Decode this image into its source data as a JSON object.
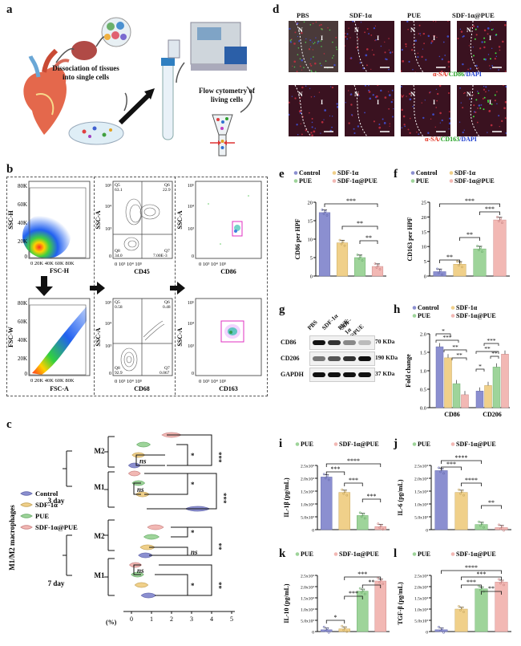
{
  "panels": {
    "a": "a",
    "b": "b",
    "c": "c",
    "d": "d",
    "e": "e",
    "f": "f",
    "g": "g",
    "h": "h",
    "i": "i",
    "j": "j",
    "k": "k",
    "l": "l"
  },
  "panel_a": {
    "step1": "Dissociation of tissues into single cells",
    "step2": "Flow cytometry of living cells"
  },
  "panel_b": {
    "ssc_h": "SSC-H",
    "fsc_h": "FSC-H",
    "fsc_w": "FSC-W",
    "fsc_a": "FSC-A",
    "ssc_a": "SSC-A",
    "cd45": "CD45",
    "cd68": "CD68",
    "cd86": "CD86",
    "cd163": "CD163",
    "yticks_top": [
      "80K",
      "60K",
      "40K",
      "20K",
      "0"
    ],
    "xticks_top": "0 20K 40K 60K 80K",
    "yticks_bot": [
      "80K",
      "60K",
      "40K",
      "20K",
      "0"
    ],
    "xticks_bot": "0 20K 40K 60K 80K",
    "q_top": {
      "q5": "Q5\n63.1",
      "q6": "Q6\n22.9",
      "q8": "Q8\n34.0",
      "q7": "Q7\n7.00E-3"
    },
    "q_bot": {
      "q5": "Q5\n0.58",
      "q6": "Q6\n0.48",
      "q8": "Q8\n92.9",
      "q7": "Q7\n0.067"
    },
    "log_ticks": [
      "10⁵",
      "10⁴",
      "10³",
      "0"
    ],
    "log_x": "0  10³  10⁴  10⁵"
  },
  "panel_c": {
    "ylabel": "M1/M2 macrophages",
    "day3": "3 day",
    "day7": "7 day",
    "m1": "M1",
    "m2": "M2",
    "legend": [
      "Control",
      "SDF-1α",
      "PUE",
      "SDF-1α@PUE"
    ],
    "xaxis_unit": "(%)",
    "xticks": [
      "0",
      "1",
      "2",
      "3",
      "4",
      "5"
    ],
    "sig": [
      "***",
      "*",
      "ns",
      "***",
      "*",
      "ns",
      "**",
      "*",
      "ns",
      "**",
      "*",
      "ns"
    ]
  },
  "panel_d": {
    "headers": [
      "PBS",
      "SDF-1α",
      "PUE",
      "SDF-1α@PUE"
    ],
    "stain1": {
      "a": "α-SA/",
      "b": "CD86",
      "c": "/DAPI"
    },
    "stain2": {
      "a": "α-SA/",
      "b": "CD163",
      "c": "/DAPI"
    },
    "n": "N",
    "i": "I"
  },
  "legend": {
    "control": "Control",
    "sdf": "SDF-1α",
    "pue": "PUE",
    "combo": "SDF-1α@PUE"
  },
  "colors": {
    "control": "#8b8fd0",
    "sdf": "#f0d08a",
    "pue": "#9ed49a",
    "combo": "#f2b8b4"
  },
  "panel_g": {
    "lanes": [
      "PBS",
      "SDF-1α",
      "PUE",
      "SDF-1α @PUE"
    ],
    "rows": [
      {
        "name": "CD86",
        "kda": "70 KDa"
      },
      {
        "name": "CD206",
        "kda": "190 KDa"
      },
      {
        "name": "GAPDH",
        "kda": "37 KDa"
      }
    ]
  },
  "chart_data": [
    {
      "id": "e",
      "type": "bar",
      "categories": [
        "Control",
        "SDF-1α",
        "PUE",
        "SDF-1α@PUE"
      ],
      "values": [
        17.2,
        9.0,
        5.0,
        2.6
      ],
      "ylabel": "CD86 per HPF",
      "ylim": [
        0,
        20
      ],
      "yticks": [
        "0",
        "5",
        "10",
        "15",
        "20"
      ],
      "sig": [
        "***",
        "**",
        "**"
      ]
    },
    {
      "id": "f",
      "type": "bar",
      "categories": [
        "Control",
        "SDF-1α",
        "PUE",
        "SDF-1α@PUE"
      ],
      "values": [
        1.5,
        4.0,
        9.2,
        19.0
      ],
      "ylabel": "CD163 per HPF",
      "ylim": [
        0,
        25
      ],
      "yticks": [
        "0",
        "5",
        "10",
        "15",
        "20",
        "25"
      ],
      "sig": [
        "***",
        "***",
        "**",
        "**"
      ]
    },
    {
      "id": "h",
      "type": "bar",
      "groups": [
        "CD86",
        "CD206"
      ],
      "series": [
        {
          "name": "Control",
          "values": [
            1.65,
            0.45
          ]
        },
        {
          "name": "SDF-1α",
          "values": [
            1.35,
            0.6
          ]
        },
        {
          "name": "PUE",
          "values": [
            0.65,
            1.1
          ]
        },
        {
          "name": "SDF-1α@PUE",
          "values": [
            0.35,
            1.45
          ]
        }
      ],
      "ylabel": "Fold change",
      "ylim": [
        0,
        2.0
      ],
      "yticks": [
        "0.0",
        "0.5",
        "1.0",
        "1.5",
        "2.0"
      ],
      "sig": [
        "*",
        "***",
        "**",
        "**",
        "*",
        "**",
        "***",
        "**"
      ]
    },
    {
      "id": "i",
      "type": "bar",
      "categories": [
        "Control",
        "SDF-1α",
        "PUE",
        "SDF-1α@PUE"
      ],
      "values": [
        2.05,
        1.45,
        0.55,
        0.12
      ],
      "ylabel": "IL-1β (pg/mL)",
      "ylim": [
        0,
        2.5
      ],
      "yticks": [
        "0",
        "5.0x10³",
        "1.0x10⁴",
        "1.5x10⁴",
        "2.0x10⁴",
        "2.5x10⁴"
      ],
      "sig": [
        "***",
        "****",
        "***",
        "***"
      ]
    },
    {
      "id": "j",
      "type": "bar",
      "categories": [
        "Control",
        "SDF-1α",
        "PUE",
        "SDF-1α@PUE"
      ],
      "values": [
        2.3,
        1.45,
        0.2,
        0.08
      ],
      "ylabel": "IL-6 (pg/mL)",
      "ylim": [
        0,
        2.5
      ],
      "yticks": [
        "0",
        "5.0x10³",
        "1.0x10⁴",
        "1.5x10⁴",
        "2.0x10⁴",
        "2.5x10⁴"
      ],
      "sig": [
        "***",
        "****",
        "****",
        "**"
      ]
    },
    {
      "id": "k",
      "type": "bar",
      "categories": [
        "Control",
        "SDF-1α",
        "PUE",
        "SDF-1α@PUE"
      ],
      "values": [
        0.08,
        0.12,
        1.8,
        2.25
      ],
      "ylabel": "IL-10 (pg/mL)",
      "ylim": [
        0,
        2.5
      ],
      "yticks": [
        "0",
        "5.0x10³",
        "1.0x10⁴",
        "1.5x10⁴",
        "2.0x10⁴",
        "2.5x10⁴"
      ],
      "sig": [
        "*",
        "***",
        "***",
        "**"
      ]
    },
    {
      "id": "l",
      "type": "bar",
      "categories": [
        "Control",
        "SDF-1α",
        "PUE",
        "SDF-1α@PUE"
      ],
      "values": [
        0.08,
        1.0,
        1.9,
        2.2
      ],
      "ylabel": "TGF-β (pg/mL)",
      "ylim": [
        0,
        2.5
      ],
      "yticks": [
        "0",
        "5.0x10³",
        "1.0x10⁴",
        "1.5x10⁴",
        "2.0x10⁴",
        "2.5x10⁴"
      ],
      "sig": [
        "***",
        "***",
        "**",
        "****"
      ]
    }
  ]
}
